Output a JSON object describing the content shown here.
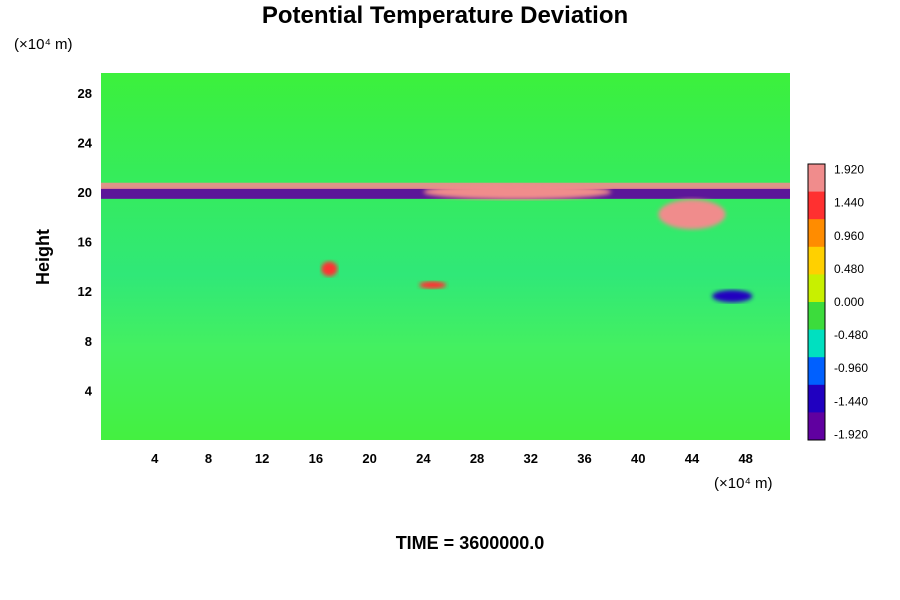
{
  "chart_data": {
    "type": "heatmap",
    "title": "Potential Temperature Deviation",
    "ylabel": "Height",
    "y_unit": "(×10⁴ m)",
    "x_unit": "(×10⁴ m)",
    "footer": "TIME = 3600000.0",
    "x_ticks": [
      "4",
      "8",
      "12",
      "16",
      "20",
      "24",
      "28",
      "32",
      "36",
      "40",
      "44",
      "48"
    ],
    "y_ticks": [
      "4",
      "8",
      "12",
      "16",
      "20",
      "24",
      "28"
    ],
    "xlim": [
      0,
      51.3
    ],
    "ylim": [
      0,
      29.6
    ],
    "colorbar": {
      "min": -2.0,
      "max": 2.0,
      "labels": [
        "1.920",
        "1.440",
        "0.960",
        "0.480",
        "0.000",
        "-0.480",
        "-0.960",
        "-1.440",
        "-1.920"
      ],
      "colors": [
        "#f08c8c",
        "#ff3030",
        "#ff8c00",
        "#ffd000",
        "#c8f000",
        "#3cdc3c",
        "#00e0c0",
        "#0060ff",
        "#2000c0",
        "#6000a0"
      ]
    },
    "field_features": [
      {
        "kind": "band",
        "y": 19.9,
        "x": [
          0,
          51.3
        ],
        "thickness": 0.9,
        "value": -1.9
      },
      {
        "kind": "band",
        "y": 20.5,
        "x": [
          0,
          51.3
        ],
        "thickness": 0.5,
        "value": 1.9
      },
      {
        "kind": "blob",
        "x": 31,
        "y": 20.0,
        "rx": 7,
        "ry": 0.6,
        "value": 2.0
      },
      {
        "kind": "blob",
        "x": 44,
        "y": 18.2,
        "rx": 2.5,
        "ry": 1.2,
        "value": 1.8
      },
      {
        "kind": "blob",
        "x": 17,
        "y": 13.8,
        "rx": 0.6,
        "ry": 0.6,
        "value": 1.3
      },
      {
        "kind": "blob",
        "x": 24.7,
        "y": 12.5,
        "rx": 1.0,
        "ry": 0.3,
        "value": 1.4
      },
      {
        "kind": "blob",
        "x": 47,
        "y": 11.6,
        "rx": 1.5,
        "ry": 0.5,
        "value": -1.2
      }
    ]
  }
}
